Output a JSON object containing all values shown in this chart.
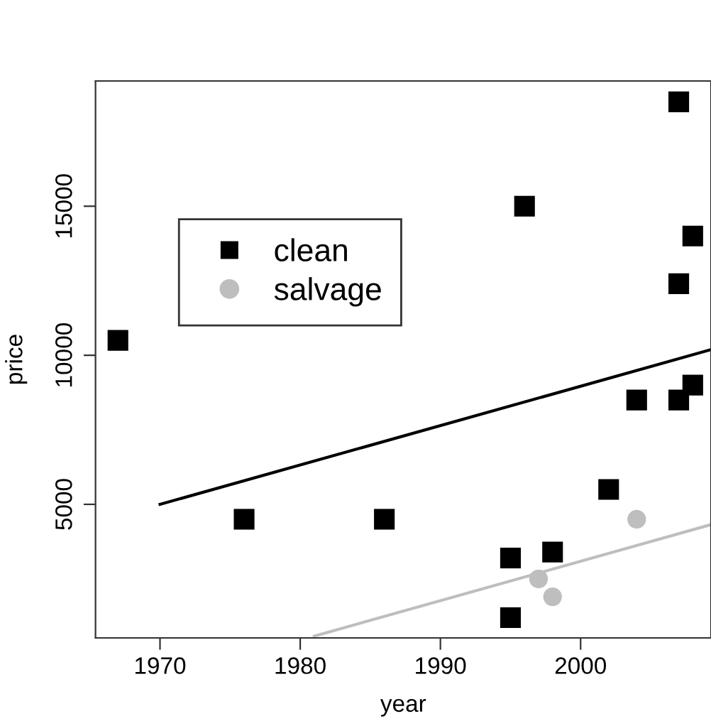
{
  "chart_data": {
    "type": "scatter",
    "xlabel": "year",
    "ylabel": "price",
    "xlim": [
      1965.4,
      2009.3
    ],
    "ylim": [
      520,
      19200
    ],
    "xticks": [
      1970,
      1980,
      1990,
      2000
    ],
    "yticks": [
      5000,
      10000,
      15000
    ],
    "grid": false,
    "legend": "top left",
    "series": [
      {
        "name": "clean",
        "color": "#000000",
        "marker": "square",
        "x": [
          1967,
          1976,
          1986,
          1995,
          1995,
          1996,
          1998,
          2002,
          2004,
          2007,
          2007,
          2007,
          2008,
          2008
        ],
        "values": [
          10500,
          4500,
          4500,
          3200,
          1200,
          15000,
          3400,
          5500,
          8500,
          8500,
          12400,
          18500,
          14000,
          9000
        ]
      },
      {
        "name": "salvage",
        "color": "#bebebe",
        "marker": "circle",
        "x": [
          1997,
          1998,
          2004
        ],
        "values": [
          2500,
          1900,
          4500
        ]
      },
      {
        "type": "line",
        "color": "#000000",
        "marker": "none",
        "x": [
          1970,
          2009.3
        ],
        "values": [
          5000,
          10190
        ]
      },
      {
        "type": "line",
        "color": "#bebebe",
        "marker": "none",
        "x": [
          1981,
          2009.3
        ],
        "values": [
          580,
          4320
        ]
      }
    ]
  }
}
